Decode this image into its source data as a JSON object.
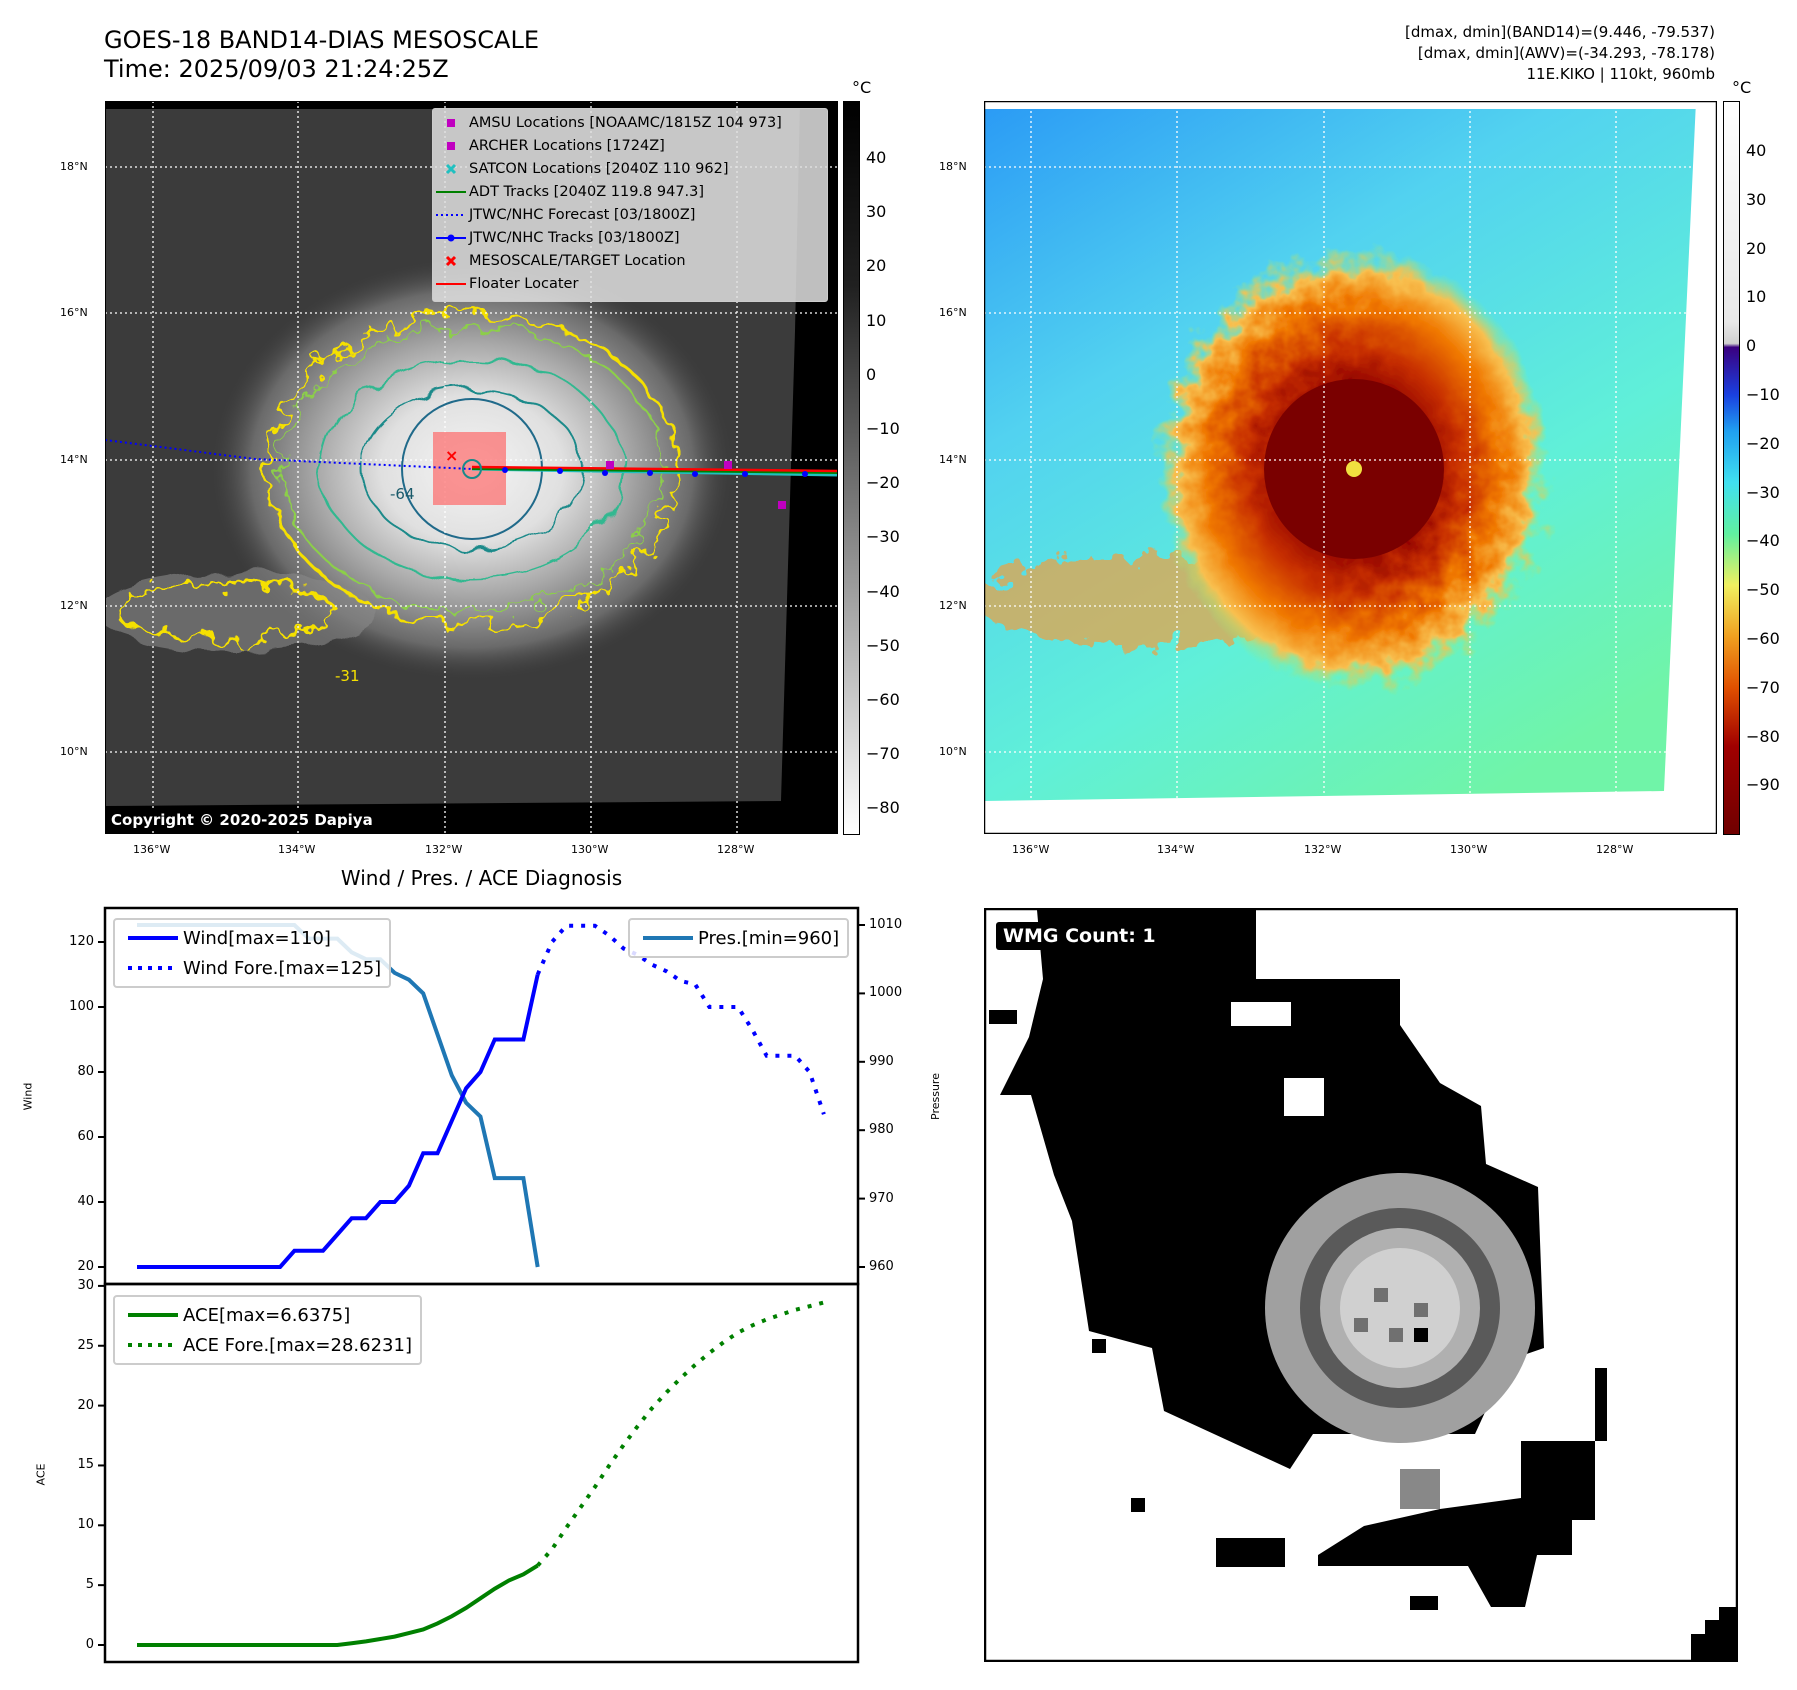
{
  "header": {
    "title_line1": "GOES-18 BAND14-DIAS MESOSCALE",
    "title_line2": "Time: 2025/09/03 21:24:25Z",
    "info_line1": "[dmax, dmin](BAND14)=(9.446, -79.537)",
    "info_line2": "[dmax, dmin](AWV)=(-34.293, -78.178)",
    "info_line3": "11E.KIKO | 110kt, 960mb"
  },
  "maps": {
    "lon_ticks": [
      "136°W",
      "134°W",
      "132°W",
      "130°W",
      "128°W"
    ],
    "lat_ticks": [
      "18°N",
      "16°N",
      "14°N",
      "12°N",
      "10°N"
    ],
    "contour_labels": [
      "-64",
      "-31"
    ],
    "copyright": "Copyright © 2020-2025 Dapiya",
    "left_colorbar": {
      "unit": "°C",
      "ticks": [
        "40",
        "30",
        "20",
        "10",
        "0",
        "−10",
        "−20",
        "−30",
        "−40",
        "−50",
        "−60",
        "−70",
        "−80"
      ]
    },
    "right_colorbar": {
      "unit": "°C",
      "ticks": [
        "40",
        "30",
        "20",
        "10",
        "0",
        "−10",
        "−20",
        "−30",
        "−40",
        "−50",
        "−60",
        "−70",
        "−80",
        "−90"
      ]
    },
    "legend": [
      {
        "label": "AMSU Locations [NOAAMC/1815Z 104 973]",
        "symbol": "square",
        "color": "#c000c0"
      },
      {
        "label": "ARCHER Locations [1724Z]",
        "symbol": "square",
        "color": "#c000c0"
      },
      {
        "label": "SATCON Locations [2040Z 110 962]",
        "symbol": "x",
        "color": "#20c0c0"
      },
      {
        "label": "ADT Tracks [2040Z 119.8 947.3]",
        "symbol": "line",
        "color": "#008000"
      },
      {
        "label": "JTWC/NHC Forecast [03/1800Z]",
        "symbol": "dotted",
        "color": "#0000ff"
      },
      {
        "label": "JTWC/NHC Tracks [03/1800Z]",
        "symbol": "line-dot",
        "color": "#0000ff"
      },
      {
        "label": "MESOSCALE/TARGET Location",
        "symbol": "x",
        "color": "#ff0000"
      },
      {
        "label": "Floater Locater",
        "symbol": "line",
        "color": "#ff0000"
      }
    ]
  },
  "wmg": {
    "label": "WMG Count: 1"
  },
  "chart_data": [
    {
      "type": "line",
      "title": "Wind / Pres. / ACE Diagnosis",
      "ylabel": "Wind",
      "ylabel_right": "Pressure",
      "ylim": [
        18,
        130
      ],
      "ylim_right": [
        958,
        1011
      ],
      "yticks": [
        "20",
        "40",
        "60",
        "80",
        "100",
        "120"
      ],
      "yticks_right": [
        "960",
        "970",
        "980",
        "990",
        "1000",
        "1010"
      ],
      "x": [
        0,
        1,
        2,
        3,
        4,
        5,
        6,
        7,
        8,
        9,
        10,
        11,
        12,
        13,
        14,
        15,
        16,
        17,
        18,
        19,
        20,
        21,
        22,
        23,
        24,
        25,
        26,
        27,
        28
      ],
      "series": [
        {
          "name": "Wind[max=110]",
          "color": "#0000ff",
          "style": "solid",
          "values": [
            20,
            20,
            20,
            20,
            20,
            20,
            20,
            20,
            20,
            20,
            20,
            25,
            25,
            25,
            30,
            35,
            35,
            40,
            40,
            45,
            55,
            55,
            65,
            75,
            80,
            90,
            90,
            90,
            110
          ]
        },
        {
          "name": "Wind Fore.[max=125]",
          "color": "#0000ff",
          "style": "dotted",
          "x": [
            28,
            29,
            30,
            31,
            32,
            33,
            34,
            35,
            36,
            37,
            38,
            39,
            40,
            41,
            42,
            43,
            44,
            45,
            46,
            47,
            48
          ],
          "values": [
            110,
            120,
            125,
            125,
            125,
            122,
            118,
            116,
            113,
            111,
            108,
            107,
            100,
            100,
            100,
            93,
            85,
            85,
            85,
            80,
            67
          ]
        },
        {
          "name": "Pres.[min=960]",
          "color": "#1f77b4",
          "style": "solid",
          "axis": "right",
          "values": [
            1010,
            1010,
            1010,
            1010,
            1010,
            1010,
            1010,
            1010,
            1010,
            1010,
            1010,
            1010,
            1008,
            1008,
            1008,
            1006,
            1005,
            1005,
            1003,
            1002,
            1000,
            994,
            988,
            984,
            982,
            973,
            973,
            973,
            960
          ]
        }
      ],
      "legend_left": [
        "Wind[max=110]",
        "Wind Fore.[max=125]"
      ],
      "legend_right": [
        "Pres.[min=960]"
      ]
    },
    {
      "type": "line",
      "ylabel": "ACE",
      "ylim": [
        -1.5,
        30
      ],
      "yticks": [
        "0",
        "5",
        "10",
        "15",
        "20",
        "25",
        "30"
      ],
      "series": [
        {
          "name": "ACE[max=6.6375]",
          "color": "#008000",
          "style": "solid",
          "x": [
            0,
            2,
            4,
            6,
            8,
            10,
            12,
            14,
            15,
            16,
            17,
            18,
            19,
            20,
            21,
            22,
            23,
            24,
            25,
            26,
            27,
            28
          ],
          "values": [
            0,
            0,
            0,
            0,
            0,
            0,
            0,
            0,
            0.15,
            0.3,
            0.5,
            0.7,
            1.0,
            1.3,
            1.8,
            2.4,
            3.1,
            3.9,
            4.7,
            5.4,
            5.9,
            6.64
          ]
        },
        {
          "name": "ACE Fore.[max=28.6231]",
          "color": "#008000",
          "style": "dotted",
          "x": [
            28,
            29,
            30,
            31,
            32,
            33,
            34,
            35,
            36,
            37,
            38,
            39,
            40,
            41,
            42,
            43,
            44,
            45,
            46,
            47,
            48
          ],
          "values": [
            6.64,
            8.0,
            9.8,
            11.5,
            13.2,
            15.0,
            16.7,
            18.3,
            19.8,
            21.1,
            22.3,
            23.4,
            24.4,
            25.3,
            26.1,
            26.7,
            27.2,
            27.6,
            28.0,
            28.3,
            28.62
          ]
        }
      ]
    }
  ]
}
